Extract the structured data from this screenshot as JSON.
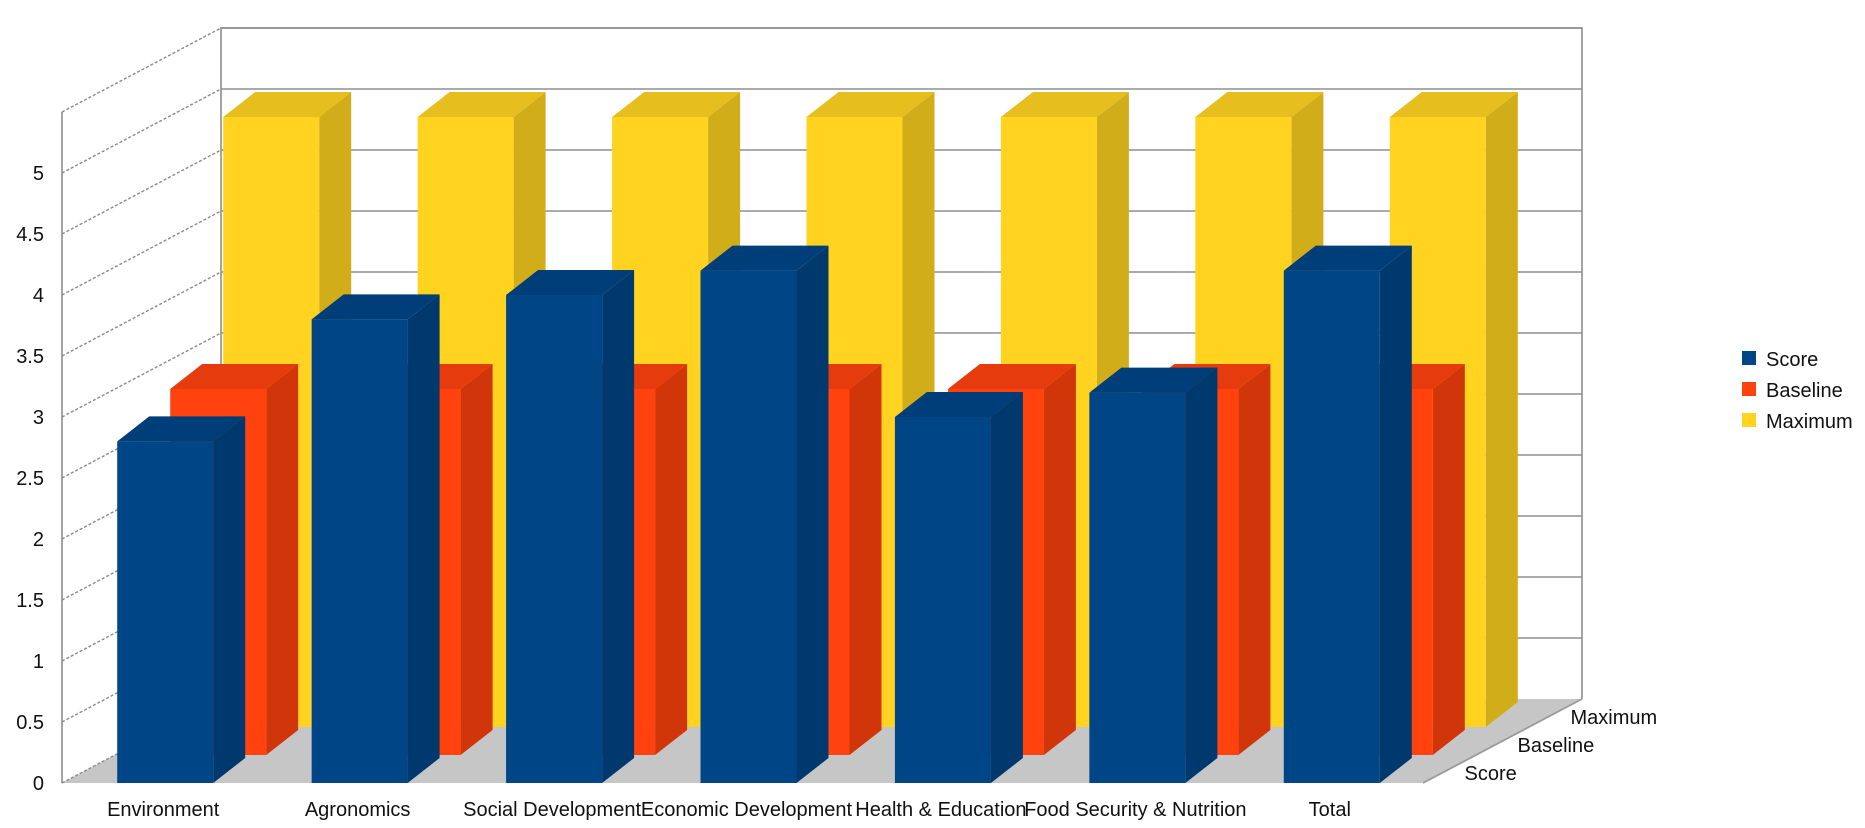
{
  "chart_data": {
    "type": "bar",
    "title": "",
    "xlabel": "",
    "ylabel": "",
    "categories": [
      "Environment",
      "Agronomics",
      "Social Development",
      "Economic Development",
      "Health & Education",
      "Food Security & Nutrition",
      "Total"
    ],
    "series": [
      {
        "name": "Score",
        "color": "#004586",
        "values": [
          2.8,
          3.8,
          4.0,
          4.2,
          3.0,
          3.2,
          4.2
        ]
      },
      {
        "name": "Baseline",
        "color": "#ff420e",
        "values": [
          3,
          3,
          3,
          3,
          3,
          3,
          3
        ]
      },
      {
        "name": "Maximum",
        "color": "#ffd320",
        "values": [
          5,
          5,
          5,
          5,
          5,
          5,
          5
        ]
      }
    ],
    "y_ticks": [
      "0",
      "0.5",
      "1",
      "1.5",
      "2",
      "2.5",
      "3",
      "3.5",
      "4",
      "4.5",
      "5"
    ],
    "ylim": [
      0,
      5
    ],
    "depth_labels": [
      "Score",
      "Baseline",
      "Maximum"
    ],
    "legend": {
      "position": "right",
      "entries": [
        "Score",
        "Baseline",
        "Maximum"
      ]
    },
    "grid": true,
    "style": "3d-deep-columns"
  }
}
